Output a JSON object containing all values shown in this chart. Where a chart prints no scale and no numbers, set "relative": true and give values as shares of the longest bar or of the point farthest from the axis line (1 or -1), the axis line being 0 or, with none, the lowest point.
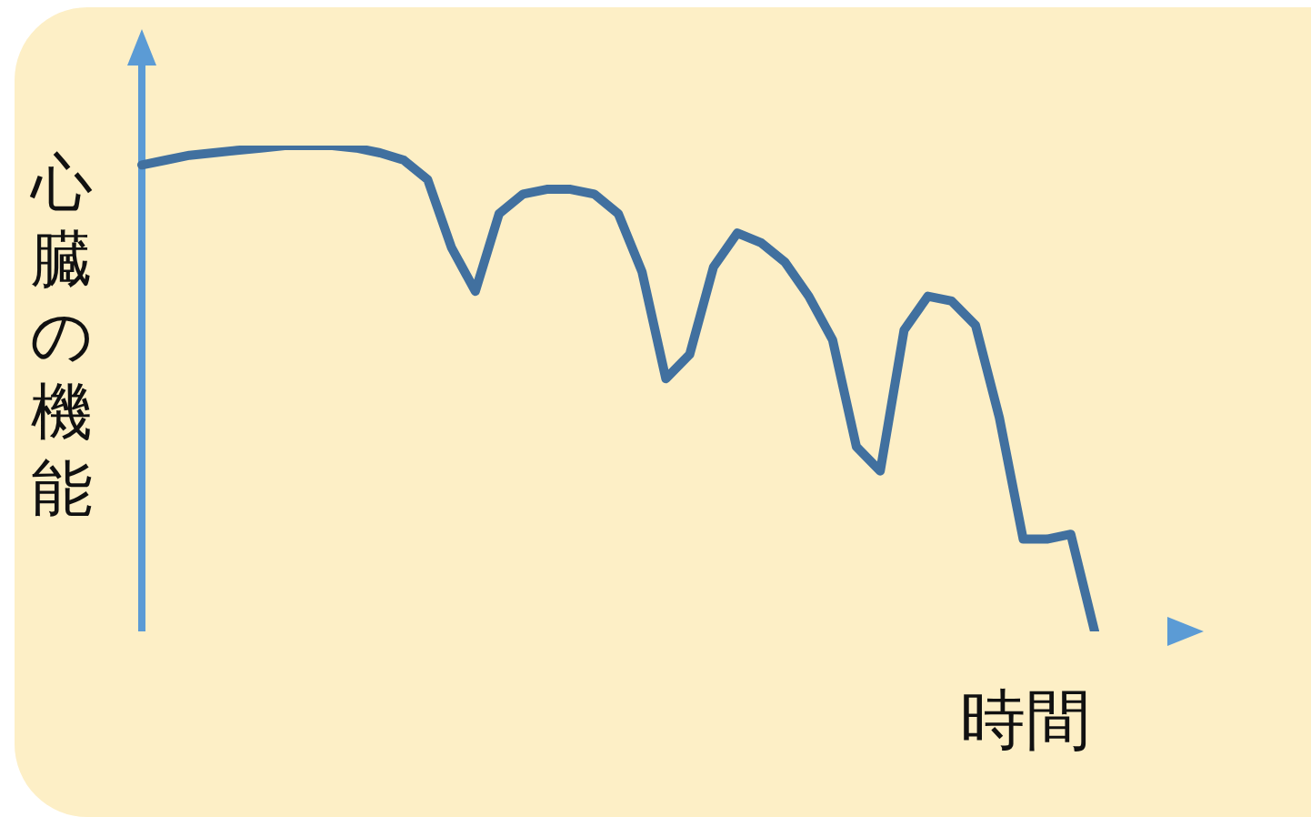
{
  "chart_data": {
    "type": "line",
    "relative": true,
    "xlabel": "時間",
    "ylabel": "心臓の機能",
    "marker": "none",
    "line_style": "solid",
    "categories": [
      null,
      null,
      null,
      null,
      null,
      null,
      null,
      null,
      null,
      null,
      null,
      null,
      null,
      null,
      null,
      null,
      null,
      null,
      null,
      null,
      null,
      null,
      null,
      null,
      null,
      null,
      null,
      null,
      null,
      null,
      null,
      null,
      null,
      null,
      null,
      null,
      null,
      null,
      null,
      null,
      null
    ],
    "series": [
      {
        "color": "#41709f",
        "values": [
          0.96,
          0.97,
          0.98,
          0.985,
          0.99,
          0.995,
          1.0,
          1.0,
          1.0,
          0.995,
          0.985,
          0.97,
          0.93,
          0.79,
          0.7,
          0.86,
          0.9,
          0.91,
          0.91,
          0.9,
          0.86,
          0.74,
          0.52,
          0.57,
          0.75,
          0.82,
          0.8,
          0.76,
          0.69,
          0.6,
          0.38,
          0.33,
          0.62,
          0.69,
          0.68,
          0.63,
          0.44,
          0.19,
          0.19,
          0.2,
          0
        ]
      }
    ]
  }
}
